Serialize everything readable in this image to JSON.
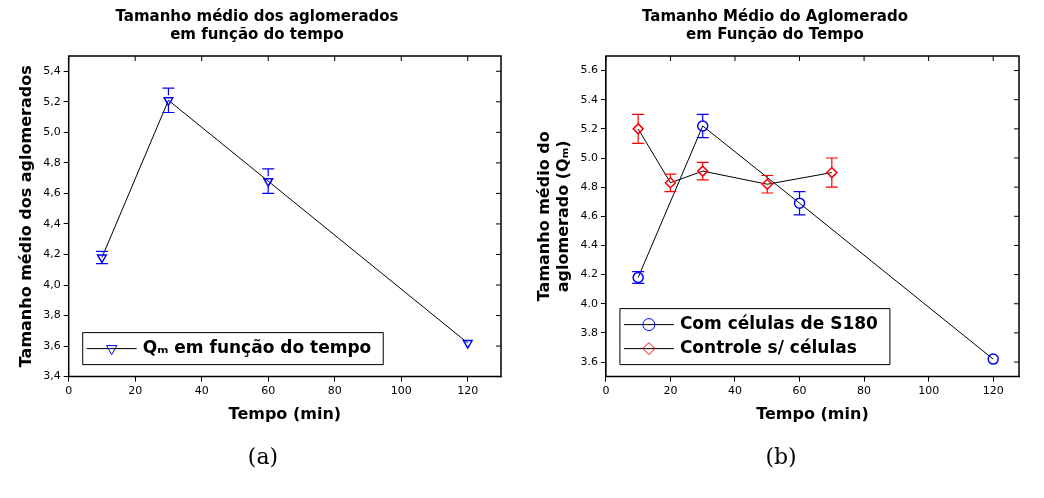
{
  "chart_data": [
    {
      "type": "line",
      "title": "Tamanho médio dos aglomerados em função do tempo",
      "xlabel": "Tempo (min)",
      "ylabel": "Tamanho médio dos aglomerados",
      "series": [
        {
          "name": "Qₘ em função do tempo",
          "color": "#0000ff",
          "x": [
            10,
            30,
            60,
            120
          ],
          "values": [
            4.18,
            5.21,
            4.68,
            3.62
          ],
          "errors": [
            0.04,
            0.08,
            0.08,
            null
          ]
        }
      ],
      "xlim": [
        0,
        130
      ],
      "xticks": [
        0,
        20,
        40,
        60,
        80,
        100,
        120
      ],
      "ylim": [
        3.4,
        5.5
      ],
      "yticks": [
        {
          "value": 3.4,
          "label": "3,4"
        },
        {
          "value": 3.6,
          "label": "3,6"
        },
        {
          "value": 3.8,
          "label": "3,8"
        },
        {
          "value": 4.0,
          "label": "4,0"
        },
        {
          "value": 4.2,
          "label": "4,2"
        },
        {
          "value": 4.4,
          "label": "4,4"
        },
        {
          "value": 4.6,
          "label": "4,6"
        },
        {
          "value": 4.8,
          "label": "4,8"
        },
        {
          "value": 5.0,
          "label": "5,0"
        },
        {
          "value": 5.2,
          "label": "5,2"
        },
        {
          "value": 5.4,
          "label": "5,4"
        }
      ],
      "marker": "triangle",
      "legend": "bottom left",
      "grid": false,
      "annotations": [
        "(a)"
      ]
    },
    {
      "type": "line",
      "title": "Tamanho Médio do Aglomerado em Função do Tempo",
      "xlabel": "Tempo (min)",
      "ylabel": "Tamanho médio do aglomerado (Qₘ)",
      "series": [
        {
          "name": "Com células de S180",
          "color": "#0000ff",
          "marker": "circle",
          "x": [
            10,
            30,
            60,
            120
          ],
          "values": [
            4.18,
            5.22,
            4.69,
            3.62
          ],
          "errors": [
            0.04,
            0.08,
            0.08,
            null
          ]
        },
        {
          "name": "Controle s/ células",
          "color": "#ff0000",
          "marker": "diamond",
          "x": [
            10,
            20,
            30,
            50,
            70
          ],
          "values": [
            5.2,
            4.83,
            4.91,
            4.82,
            4.9
          ],
          "errors": [
            0.1,
            0.06,
            0.06,
            0.06,
            0.1
          ]
        }
      ],
      "xlim": [
        0,
        128
      ],
      "xticks": [
        0,
        20,
        40,
        60,
        80,
        100,
        120
      ],
      "ylim": [
        3.5,
        5.7
      ],
      "yticks": [
        3.6,
        3.8,
        {
          "value": 4.0,
          "label": "4.0"
        },
        4.2,
        4.4,
        4.6,
        4.8,
        {
          "value": 5.0,
          "label": "5.0"
        },
        5.2,
        5.4,
        5.6
      ],
      "legend": "bottom left",
      "grid": false,
      "annotations": [
        "(b)"
      ]
    }
  ]
}
